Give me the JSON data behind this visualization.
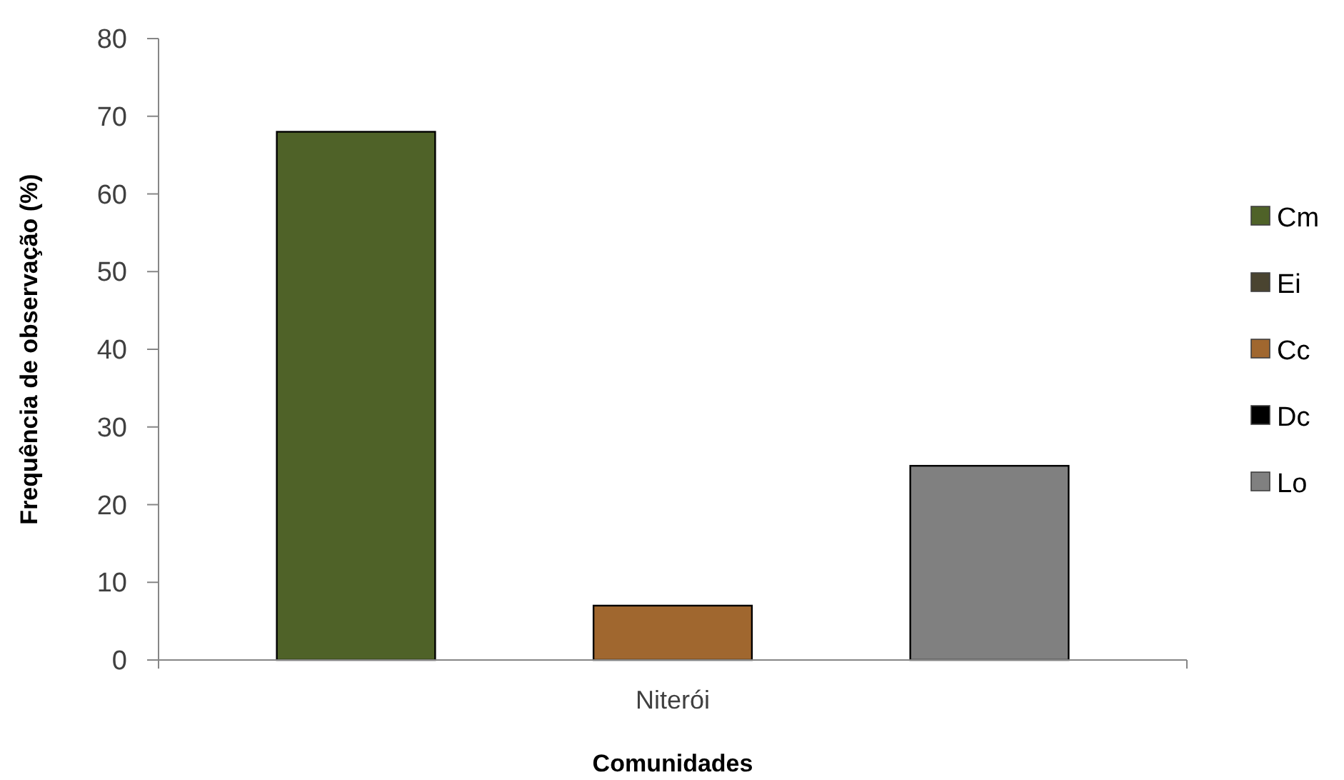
{
  "chart_data": {
    "type": "bar",
    "xlabel": "Comunidades",
    "ylabel": "Frequência de observação (%)",
    "categories": [
      "Niterói"
    ],
    "series": [
      {
        "name": "Cm",
        "color": "#4f6228",
        "values": [
          68
        ]
      },
      {
        "name": "Ei",
        "color": "#4a4430",
        "values": [
          0
        ]
      },
      {
        "name": "Cc",
        "color": "#a0672f",
        "values": [
          7
        ]
      },
      {
        "name": "Dc",
        "color": "#000000",
        "values": [
          0
        ]
      },
      {
        "name": "Lo",
        "color": "#808080",
        "values": [
          25
        ]
      }
    ],
    "ylim": [
      0,
      80
    ],
    "yticks": [
      0,
      10,
      20,
      30,
      40,
      50,
      60,
      70,
      80
    ],
    "grid": false,
    "legend": "right"
  }
}
